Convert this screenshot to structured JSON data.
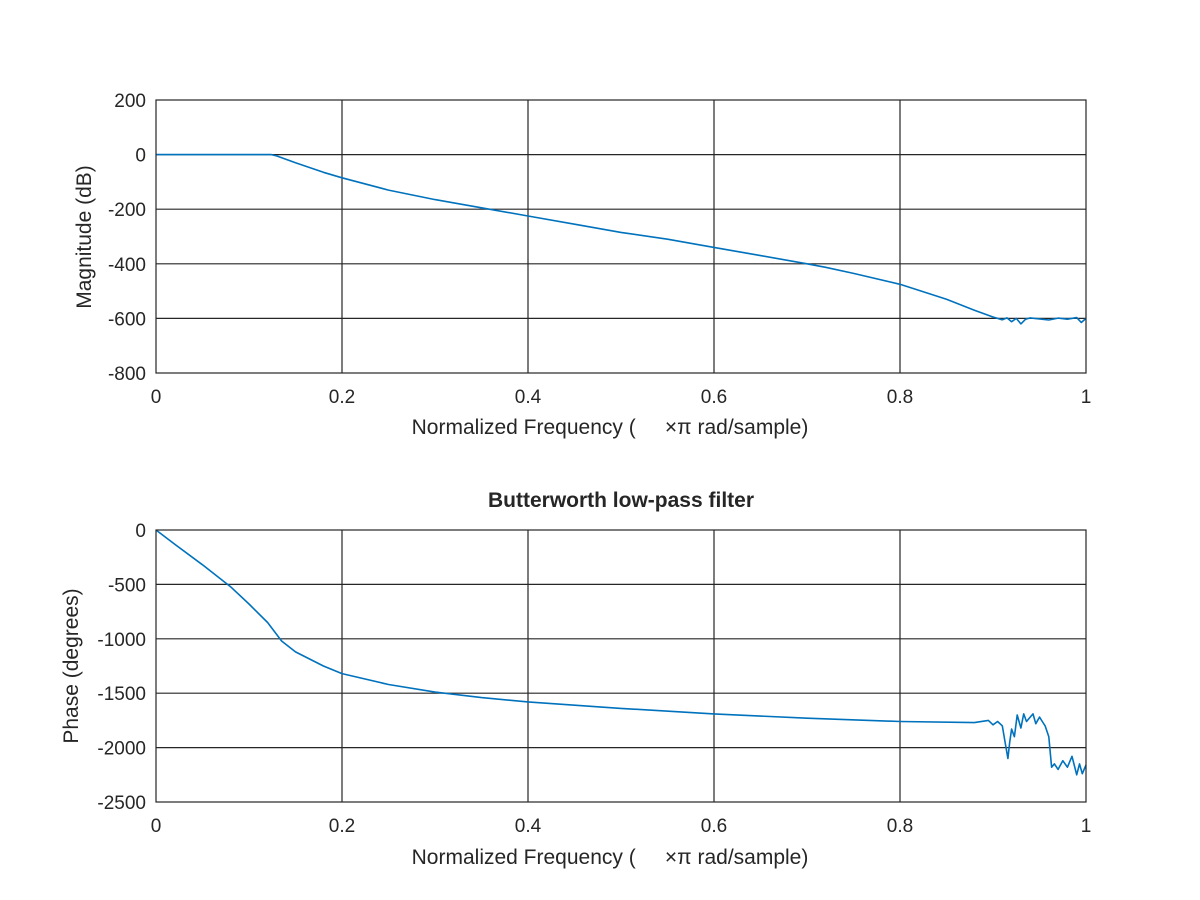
{
  "chart_data": [
    {
      "type": "line",
      "title": "",
      "xlabel": "Normalized Frequency (     ×π rad/sample)",
      "ylabel": "Magnitude (dB)",
      "xlim": [
        0,
        1
      ],
      "ylim": [
        -800,
        200
      ],
      "xticks": [
        "0",
        "0.2",
        "0.4",
        "0.6",
        "0.8",
        "1"
      ],
      "yticks": [
        "-800",
        "-600",
        "-400",
        "-200",
        "0",
        "200"
      ],
      "grid": true,
      "color": "#0072bd",
      "series": [
        {
          "x": [
            0,
            0.05,
            0.1,
            0.124,
            0.13,
            0.15,
            0.18,
            0.2,
            0.25,
            0.3,
            0.35,
            0.4,
            0.45,
            0.5,
            0.55,
            0.6,
            0.65,
            0.7,
            0.72,
            0.75,
            0.8,
            0.85,
            0.88,
            0.9,
            0.905,
            0.91,
            0.915,
            0.92,
            0.925,
            0.93,
            0.935,
            0.94,
            0.95,
            0.96,
            0.97,
            0.98,
            0.99,
            0.995,
            1.0
          ],
          "values": [
            0,
            0,
            0,
            0,
            -5,
            -30,
            -65,
            -85,
            -130,
            -165,
            -195,
            -225,
            -255,
            -285,
            -310,
            -340,
            -370,
            -400,
            -413,
            -435,
            -475,
            -530,
            -570,
            -595,
            -600,
            -605,
            -598,
            -612,
            -600,
            -620,
            -603,
            -598,
            -602,
            -606,
            -599,
            -603,
            -597,
            -615,
            -600
          ]
        }
      ]
    },
    {
      "type": "line",
      "title": "Butterworth low-pass filter",
      "xlabel": "Normalized Frequency (     ×π rad/sample)",
      "ylabel": "Phase (degrees)",
      "xlim": [
        0,
        1
      ],
      "ylim": [
        -2500,
        0
      ],
      "xticks": [
        "0",
        "0.2",
        "0.4",
        "0.6",
        "0.8",
        "1"
      ],
      "yticks": [
        "-2500",
        "-2000",
        "-1500",
        "-1000",
        "-500",
        "0"
      ],
      "grid": true,
      "color": "#0072bd",
      "series": [
        {
          "x": [
            0,
            0.02,
            0.05,
            0.08,
            0.1,
            0.12,
            0.135,
            0.15,
            0.18,
            0.2,
            0.25,
            0.3,
            0.35,
            0.4,
            0.5,
            0.6,
            0.7,
            0.8,
            0.88,
            0.895,
            0.9,
            0.905,
            0.91,
            0.913,
            0.916,
            0.918,
            0.92,
            0.923,
            0.926,
            0.93,
            0.933,
            0.936,
            0.94,
            0.943,
            0.946,
            0.95,
            0.953,
            0.956,
            0.96,
            0.963,
            0.966,
            0.97,
            0.975,
            0.98,
            0.985,
            0.99,
            0.993,
            0.996,
            1.0
          ],
          "values": [
            0,
            -130,
            -320,
            -520,
            -680,
            -850,
            -1020,
            -1120,
            -1250,
            -1320,
            -1420,
            -1490,
            -1540,
            -1580,
            -1640,
            -1690,
            -1730,
            -1760,
            -1770,
            -1750,
            -1790,
            -1760,
            -1800,
            -1950,
            -2100,
            -1950,
            -1830,
            -1900,
            -1700,
            -1820,
            -1690,
            -1760,
            -1720,
            -1690,
            -1780,
            -1720,
            -1760,
            -1800,
            -1900,
            -2180,
            -2150,
            -2200,
            -2120,
            -2180,
            -2080,
            -2250,
            -2150,
            -2240,
            -2160
          ]
        }
      ]
    }
  ]
}
